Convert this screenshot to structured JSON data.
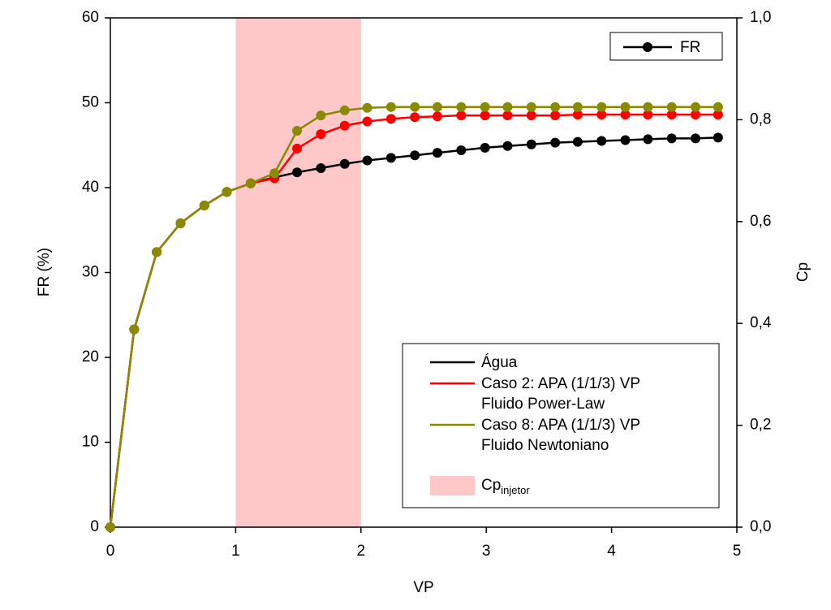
{
  "chart_data": {
    "type": "line",
    "xlabel": "VP",
    "ylabel": "FR (%)",
    "y2label": "Cp",
    "x": [
      0,
      0.19,
      0.37,
      0.56,
      0.75,
      0.93,
      1.12,
      1.31,
      1.49,
      1.68,
      1.87,
      2.05,
      2.24,
      2.43,
      2.61,
      2.8,
      2.99,
      3.17,
      3.36,
      3.55,
      3.73,
      3.92,
      4.11,
      4.29,
      4.48,
      4.67,
      4.85
    ],
    "series": [
      {
        "name": "Água",
        "color": "#000000",
        "values": [
          0,
          23.3,
          32.4,
          35.8,
          37.9,
          39.5,
          40.5,
          41.2,
          41.8,
          42.3,
          42.8,
          43.2,
          43.5,
          43.8,
          44.1,
          44.4,
          44.7,
          44.9,
          45.1,
          45.3,
          45.4,
          45.5,
          45.6,
          45.7,
          45.8,
          45.8,
          45.9
        ]
      },
      {
        "name": "Caso 2: APA (1/1/3) VP\nFluido Power-Law",
        "color": "#ff0000",
        "values": [
          0,
          23.3,
          32.4,
          35.8,
          37.9,
          39.5,
          40.5,
          41.1,
          44.6,
          46.3,
          47.3,
          47.8,
          48.1,
          48.3,
          48.4,
          48.5,
          48.5,
          48.5,
          48.5,
          48.5,
          48.6,
          48.6,
          48.6,
          48.6,
          48.6,
          48.6,
          48.6
        ]
      },
      {
        "name": "Caso 8: APA (1/1/3) VP\nFluido Newtoniano",
        "color": "#8a8a00",
        "values": [
          0,
          23.3,
          32.4,
          35.8,
          37.9,
          39.5,
          40.5,
          41.7,
          46.7,
          48.5,
          49.1,
          49.4,
          49.5,
          49.5,
          49.5,
          49.5,
          49.5,
          49.5,
          49.5,
          49.5,
          49.5,
          49.5,
          49.5,
          49.5,
          49.5,
          49.5,
          49.5
        ]
      }
    ],
    "span": {
      "x": [
        1,
        2
      ],
      "color": "#ffc8c8",
      "label": "Cp",
      "label_sub": "injetor"
    },
    "marker_legend": "FR",
    "xlim": [
      0,
      5
    ],
    "xticks": [
      0,
      1,
      2,
      3,
      4,
      5
    ],
    "ylim": [
      0,
      60
    ],
    "yticks": [
      0,
      10,
      20,
      30,
      40,
      50,
      60
    ],
    "y2lim": [
      0,
      1
    ],
    "y2ticks": [
      {
        "value": 0,
        "label": "0,0"
      },
      {
        "value": 0.2,
        "label": "0,2"
      },
      {
        "value": 0.4,
        "label": "0,4"
      },
      {
        "value": 0.6,
        "label": "0,6"
      },
      {
        "value": 0.8,
        "label": "0,8"
      },
      {
        "value": 1,
        "label": "1,0"
      }
    ]
  }
}
